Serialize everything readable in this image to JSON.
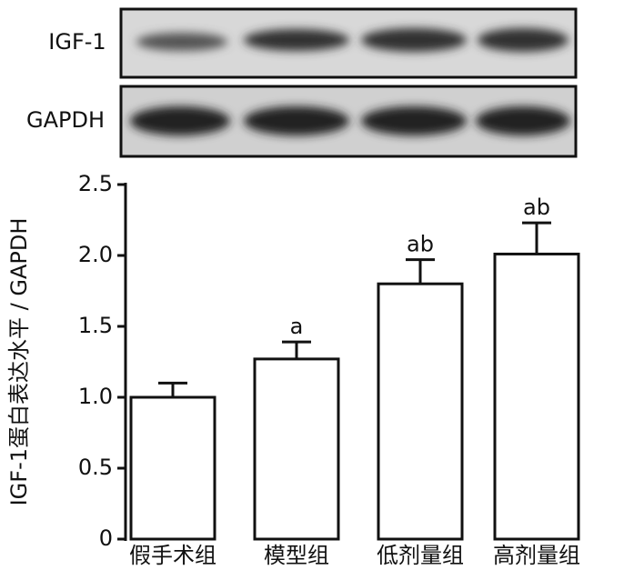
{
  "blot": {
    "rows": [
      "IGF-1",
      "GAPDH"
    ]
  },
  "chart_data": {
    "type": "bar",
    "y_label": "IGF-1蛋白表达水平 / GAPDH",
    "categories": [
      "假手术组",
      "模型组",
      "低剂量组",
      "高剂量组"
    ],
    "values": [
      1.0,
      1.27,
      1.8,
      2.01
    ],
    "errors": [
      0.1,
      0.12,
      0.17,
      0.22
    ],
    "annotations": [
      null,
      "a",
      "ab",
      "ab"
    ],
    "color": "#ffffff",
    "ylim": [
      0,
      2.5
    ],
    "yticks": [
      0,
      0.5,
      {
        "value": 1,
        "label": "1.0"
      },
      1.5,
      {
        "value": 2,
        "label": "2.0"
      },
      2.5
    ]
  }
}
